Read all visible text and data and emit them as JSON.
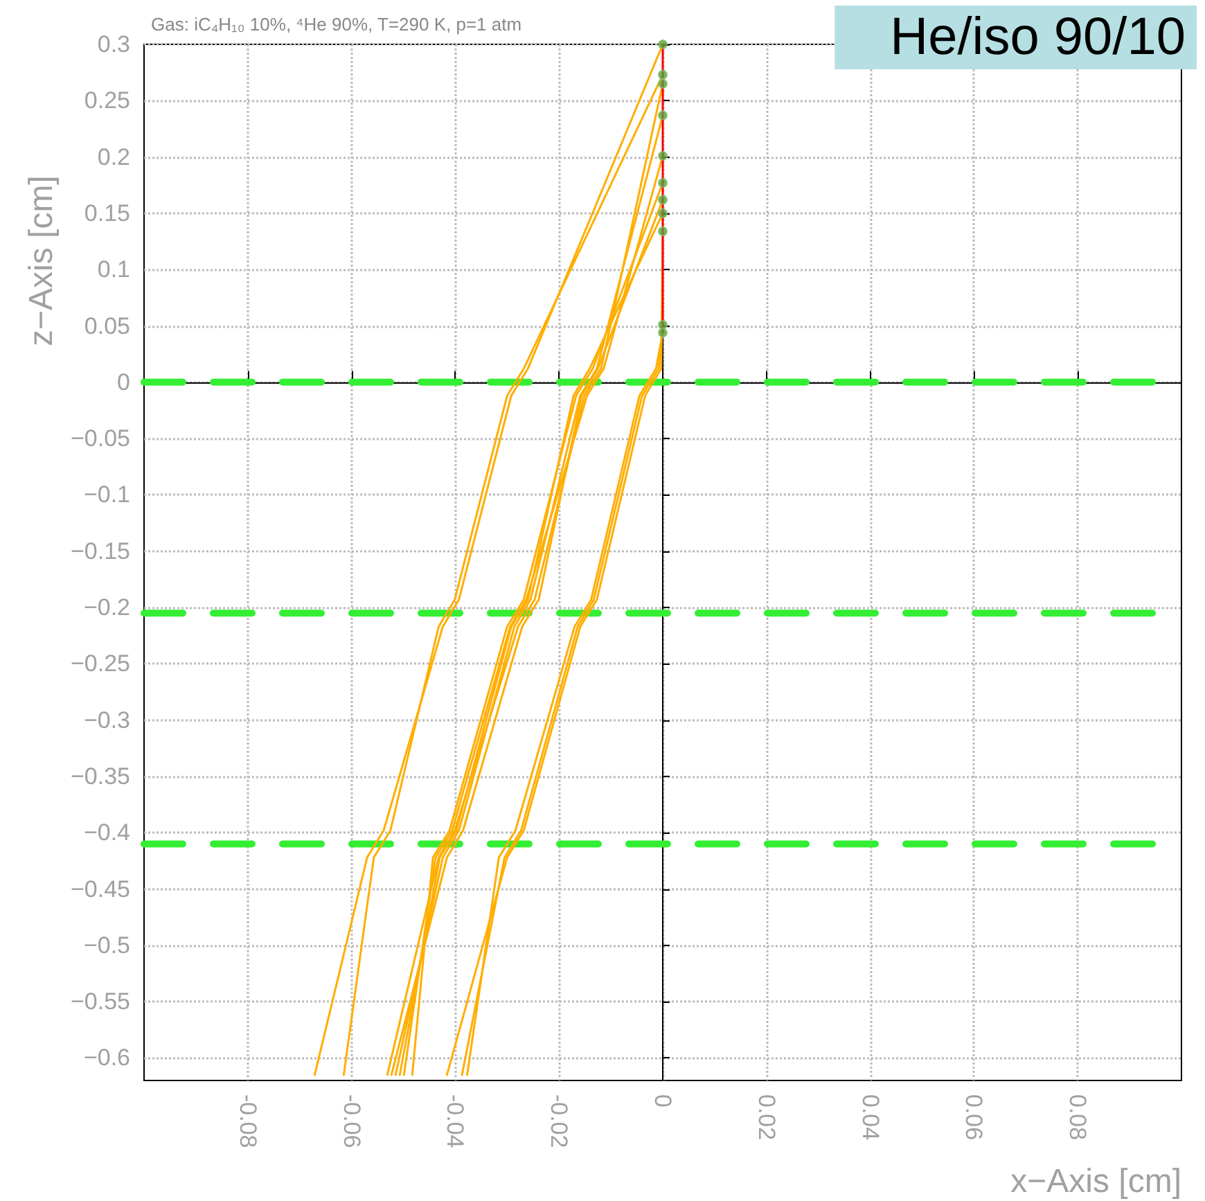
{
  "chart_data": {
    "type": "line",
    "title": "Gas: iC₄H₁₀ 10%, ⁴He 90%, T=290 K, p=1 atm",
    "xlabel": "x−Axis [cm]",
    "ylabel": "z−Axis [cm]",
    "annotations": [
      "He/iso 90/10"
    ],
    "xlim": [
      -0.1,
      0.1
    ],
    "xticks": [
      -0.08,
      -0.06,
      -0.04,
      -0.02,
      0,
      0.02,
      0.04,
      0.06,
      0.08
    ],
    "ylim": [
      -0.62,
      0.3
    ],
    "yticks": [
      -0.6,
      -0.55,
      -0.5,
      -0.45,
      -0.4,
      -0.35,
      -0.3,
      -0.25,
      -0.2,
      -0.15,
      -0.1,
      -0.05,
      0,
      0.05,
      0.1,
      0.15,
      0.2,
      0.25,
      0.3
    ],
    "grid": true,
    "marker": "none",
    "line_style": "solid",
    "ref_lines": [
      {
        "axis": "y",
        "value": 0,
        "color": "#33ee33",
        "line_style": "dashed"
      },
      {
        "axis": "y",
        "value": -0.205,
        "color": "#33ee33",
        "line_style": "dashed"
      },
      {
        "axis": "y",
        "value": -0.41,
        "color": "#33ee33",
        "line_style": "dashed"
      }
    ],
    "series": [
      {
        "color": "#ffae00",
        "x": [
          0,
          -0.026,
          -0.0292,
          -0.0393,
          -0.0424,
          -0.0538,
          -0.057,
          -0.0671
        ],
        "values": [
          0.3,
          0.012,
          -0.012,
          -0.193,
          -0.217,
          -0.398,
          -0.422,
          -0.615
        ]
      },
      {
        "color": "#ffae00",
        "x": [
          0,
          -0.0268,
          -0.03,
          -0.0401,
          -0.0432,
          -0.0525,
          -0.0557,
          -0.0615
        ],
        "values": [
          0.273,
          0.012,
          -0.012,
          -0.193,
          -0.217,
          -0.398,
          -0.422,
          -0.615
        ]
      },
      {
        "color": "#ffae00",
        "x": [
          0,
          -0.0119,
          -0.0151,
          -0.0247,
          -0.0279,
          -0.0401,
          -0.0432,
          -0.0531
        ],
        "values": [
          0.265,
          0.012,
          -0.012,
          -0.193,
          -0.217,
          -0.398,
          -0.422,
          -0.615
        ]
      },
      {
        "color": "#ffae00",
        "x": [
          0,
          -0.0127,
          -0.0159,
          -0.0255,
          -0.0286,
          -0.0393,
          -0.0424,
          -0.0515
        ],
        "values": [
          0.237,
          0.012,
          -0.012,
          -0.193,
          -0.217,
          -0.398,
          -0.422,
          -0.615
        ]
      },
      {
        "color": "#ffae00",
        "x": [
          0,
          -0.0114,
          -0.0146,
          -0.0263,
          -0.0294,
          -0.0406,
          -0.0438,
          -0.0499
        ],
        "values": [
          0.201,
          0.012,
          -0.012,
          -0.193,
          -0.217,
          -0.398,
          -0.422,
          -0.615
        ]
      },
      {
        "color": "#ffae00",
        "x": [
          0,
          -0.0135,
          -0.0167,
          -0.0268,
          -0.03,
          -0.0411,
          -0.0443,
          -0.0483
        ],
        "values": [
          0.177,
          0.012,
          -0.012,
          -0.193,
          -0.217,
          -0.398,
          -0.422,
          -0.615
        ]
      },
      {
        "color": "#ffae00",
        "x": [
          0,
          -0.0125,
          -0.0156,
          -0.0239,
          -0.0271,
          -0.0385,
          -0.0416,
          -0.0523
        ],
        "values": [
          0.162,
          0.012,
          -0.012,
          -0.193,
          -0.217,
          -0.398,
          -0.422,
          -0.615
        ]
      },
      {
        "color": "#ffae00",
        "x": [
          0,
          -0.0141,
          -0.0172,
          -0.026,
          -0.0292,
          -0.0398,
          -0.043,
          -0.0507
        ],
        "values": [
          0.15,
          0.012,
          -0.012,
          -0.193,
          -0.217,
          -0.398,
          -0.422,
          -0.615
        ]
      },
      {
        "color": "#ffae00",
        "x": [
          0,
          -0.0003,
          -0.0034,
          -0.0127,
          -0.0159,
          -0.0268,
          -0.03,
          -0.0416
        ],
        "values": [
          0.134,
          0.012,
          -0.012,
          -0.193,
          -0.217,
          -0.398,
          -0.422,
          -0.615
        ]
      },
      {
        "color": "#ffae00",
        "x": [
          0,
          -0.0008,
          -0.004,
          -0.0133,
          -0.0164,
          -0.0273,
          -0.0305,
          -0.0387
        ],
        "values": [
          0.051,
          0.012,
          -0.012,
          -0.193,
          -0.217,
          -0.398,
          -0.422,
          -0.615
        ]
      },
      {
        "color": "#ffae00",
        "x": [
          0,
          -0.0013,
          -0.0045,
          -0.0138,
          -0.017,
          -0.0284,
          -0.0316,
          -0.0377
        ],
        "values": [
          0.044,
          0.012,
          -0.012,
          -0.193,
          -0.217,
          -0.398,
          -0.422,
          -0.615
        ]
      },
      {
        "color": "#ff0000",
        "x": [
          0,
          0
        ],
        "values": [
          0.044,
          0.3
        ]
      },
      {
        "type": "scatter",
        "marker": "circle",
        "color": "#5a9e3c",
        "x": [
          0,
          0,
          0,
          0,
          0,
          0,
          0,
          0,
          0,
          0,
          0
        ],
        "values": [
          0.3,
          0.273,
          0.265,
          0.237,
          0.201,
          0.177,
          0.162,
          0.15,
          0.134,
          0.051,
          0.044
        ]
      }
    ]
  }
}
